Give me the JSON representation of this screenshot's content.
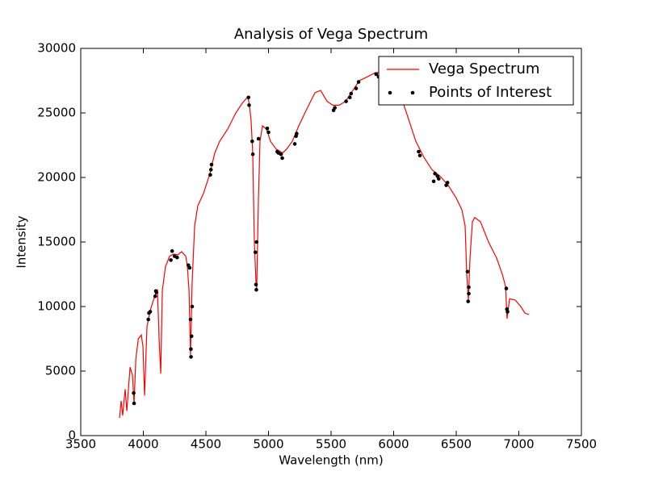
{
  "chart_data": {
    "type": "line",
    "title": "Analysis of Vega Spectrum",
    "xlabel": "Wavelength (nm)",
    "ylabel": "Intensity",
    "xlim": [
      3500,
      7500
    ],
    "xticks": [
      3500,
      4000,
      4500,
      5000,
      5500,
      6000,
      6500,
      7000,
      7500
    ],
    "ylim": [
      0,
      30000
    ],
    "yticks": [
      0,
      5000,
      10000,
      15000,
      20000,
      25000,
      30000
    ],
    "legend": "upper right",
    "series": [
      {
        "name": "Vega Spectrum",
        "color": "#ff0000",
        "line": true,
        "x": [
          3810,
          3823,
          3835,
          3855,
          3868,
          3894,
          3913,
          3926,
          3940,
          3960,
          3984,
          3997,
          4010,
          4029,
          4055,
          4094,
          4113,
          4126,
          4139,
          4152,
          4177,
          4210,
          4242,
          4274,
          4306,
          4339,
          4352,
          4365,
          4377,
          4390,
          4410,
          4435,
          4480,
          4532,
          4571,
          4610,
          4674,
          4739,
          4790,
          4835,
          4848,
          4861,
          4874,
          4887,
          4900,
          4906,
          4919,
          4932,
          4952,
          4984,
          5016,
          5061,
          5113,
          5145,
          5190,
          5242,
          5306,
          5371,
          5416,
          5468,
          5513,
          5565,
          5616,
          5661,
          5726,
          5790,
          5855,
          5919,
          5984,
          6048,
          6113,
          6177,
          6242,
          6306,
          6371,
          6435,
          6500,
          6545,
          6571,
          6584,
          6597,
          6610,
          6629,
          6648,
          6694,
          6758,
          6823,
          6868,
          6894,
          6906,
          6926,
          6971,
          7016,
          7048,
          7081
        ],
        "values": [
          1375,
          2690,
          1560,
          3600,
          1900,
          5300,
          4700,
          2500,
          5940,
          7500,
          7800,
          6900,
          3100,
          8440,
          9700,
          10900,
          11250,
          7500,
          4800,
          11250,
          13100,
          13900,
          14060,
          14000,
          14250,
          13900,
          13100,
          11250,
          6250,
          11900,
          16250,
          17800,
          18750,
          20300,
          21900,
          22800,
          23750,
          25000,
          25750,
          26250,
          25600,
          24400,
          21900,
          15000,
          11900,
          11400,
          18100,
          22800,
          24000,
          23750,
          22800,
          22200,
          21900,
          22200,
          22800,
          24000,
          25300,
          26560,
          26750,
          25900,
          25600,
          25600,
          25900,
          26560,
          27500,
          27800,
          28125,
          28125,
          27500,
          26560,
          24700,
          22800,
          21560,
          20600,
          20100,
          19400,
          18400,
          17500,
          16250,
          12500,
          10500,
          13750,
          16560,
          16900,
          16560,
          15000,
          13750,
          12500,
          11560,
          9060,
          10600,
          10500,
          10000,
          9500,
          9375
        ]
      },
      {
        "name": "Points of Interest",
        "color": "#000000",
        "line": false,
        "x": [
          3923,
          3926,
          4040,
          4045,
          4055,
          4095,
          4100,
          4105,
          4220,
          4230,
          4250,
          4270,
          4360,
          4370,
          4377,
          4380,
          4381,
          4385,
          4390,
          4535,
          4540,
          4545,
          4840,
          4845,
          4870,
          4875,
          4895,
          4900,
          4903,
          4905,
          4920,
          4990,
          5000,
          5070,
          5080,
          5100,
          5110,
          5210,
          5220,
          5225,
          5520,
          5530,
          5620,
          5650,
          5660,
          5700,
          5720,
          5860,
          5880,
          6200,
          6210,
          6320,
          6330,
          6350,
          6360,
          6420,
          6430,
          6590,
          6595,
          6600,
          6600,
          6900,
          6905,
          6910
        ],
        "values": [
          3300,
          2500,
          9000,
          9500,
          9600,
          10800,
          11200,
          11100,
          13600,
          14300,
          13900,
          13800,
          13200,
          13000,
          9000,
          6700,
          6100,
          7700,
          10000,
          20200,
          20600,
          21000,
          26200,
          25600,
          22800,
          21800,
          14200,
          11700,
          11300,
          15000,
          23000,
          23800,
          23500,
          22000,
          21900,
          21800,
          21500,
          22600,
          23200,
          23400,
          25200,
          25400,
          25900,
          26200,
          26500,
          26900,
          27400,
          28000,
          27800,
          22000,
          21700,
          19700,
          20300,
          20100,
          19900,
          19400,
          19600,
          12700,
          10400,
          11500,
          11000,
          11400,
          9800,
          9600
        ]
      }
    ]
  }
}
